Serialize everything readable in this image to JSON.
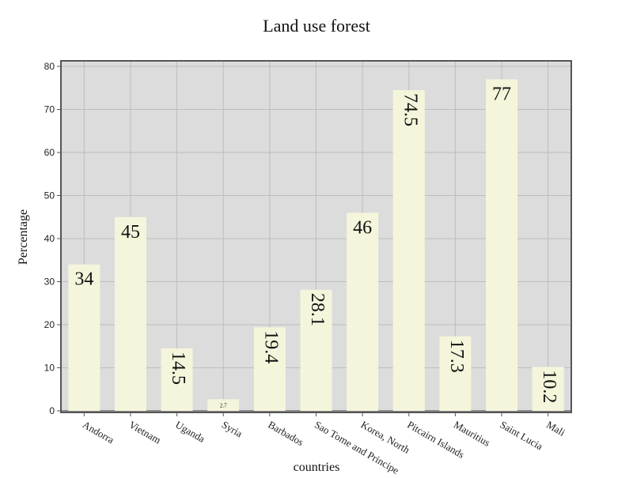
{
  "chart_data": {
    "type": "bar",
    "title": "Land use forest",
    "xlabel": "countries",
    "ylabel": "Percentage",
    "categories": [
      "Andorra",
      "Vietnam",
      "Uganda",
      "Syria",
      "Barbados",
      "Sao Tome and Principe",
      "Korea, North",
      "Pitcairn Islands",
      "Mauritius",
      "Saint Lucia",
      "Mali"
    ],
    "values": [
      34,
      45,
      14.5,
      2.7,
      19.4,
      28.1,
      46,
      74.5,
      17.3,
      77,
      10.2
    ],
    "value_labels": [
      "34",
      "45",
      "14.5",
      "2.7",
      "19.4",
      "28.1",
      "46",
      "74.5",
      "17.3",
      "77",
      "10.2"
    ],
    "ylim": [
      0,
      80
    ],
    "yticks": [
      0,
      10,
      20,
      30,
      40,
      50,
      60,
      70,
      80
    ],
    "grid": true,
    "legend": "none",
    "colors": {
      "plot_background": "#dcdcdc",
      "bar_fill": "#f5f5dc",
      "grid": "#bdbdbd",
      "frame": "#555555"
    }
  }
}
